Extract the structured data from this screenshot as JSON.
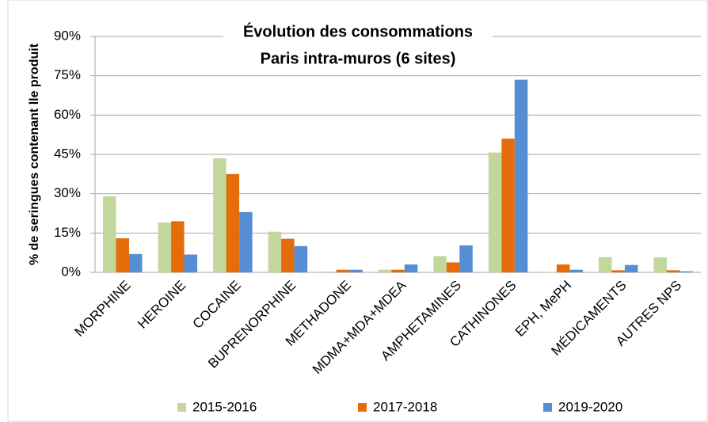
{
  "chart_data": {
    "type": "bar",
    "title": "Évolution des consommations",
    "subtitle": "Paris intra-muros (6 sites)",
    "y_label": "% de seringues contenant lle produit",
    "categories": [
      "MORPHINE",
      "HEROINE",
      "COCAINE",
      "BUPRENORPHINE",
      "METHADONE",
      "MDMA+MDA+MDEA",
      "AMPHETAMINES",
      "CATHINONES",
      "EPH, MePH",
      "MÉDICAMENTS",
      "AUTRES NPS"
    ],
    "series": [
      {
        "name": "2015-2016",
        "color": "#c3d69b",
        "values": [
          29,
          19,
          43.5,
          15.5,
          0.3,
          1,
          6.2,
          45.7,
          0.2,
          5.8,
          5.7
        ]
      },
      {
        "name": "2017-2018",
        "color": "#e46c0a",
        "values": [
          13,
          19.5,
          37.5,
          12.8,
          1,
          1,
          3.8,
          51,
          3,
          0.8,
          0.8
        ]
      },
      {
        "name": "2019-2020",
        "color": "#558ed5",
        "values": [
          7,
          6.8,
          23,
          10,
          1,
          3,
          10.3,
          73.5,
          1,
          2.8,
          0.4
        ]
      }
    ],
    "ylim": [
      0,
      90
    ],
    "yticks": [
      {
        "value": 0,
        "label": "0%"
      },
      {
        "value": 15,
        "label": "15%"
      },
      {
        "value": 30,
        "label": "30%"
      },
      {
        "value": 45,
        "label": "45%"
      },
      {
        "value": 60,
        "label": "60%"
      },
      {
        "value": 75,
        "label": "75%"
      },
      {
        "value": 90,
        "label": "90%"
      }
    ],
    "grid": true,
    "legend": "bottom"
  }
}
